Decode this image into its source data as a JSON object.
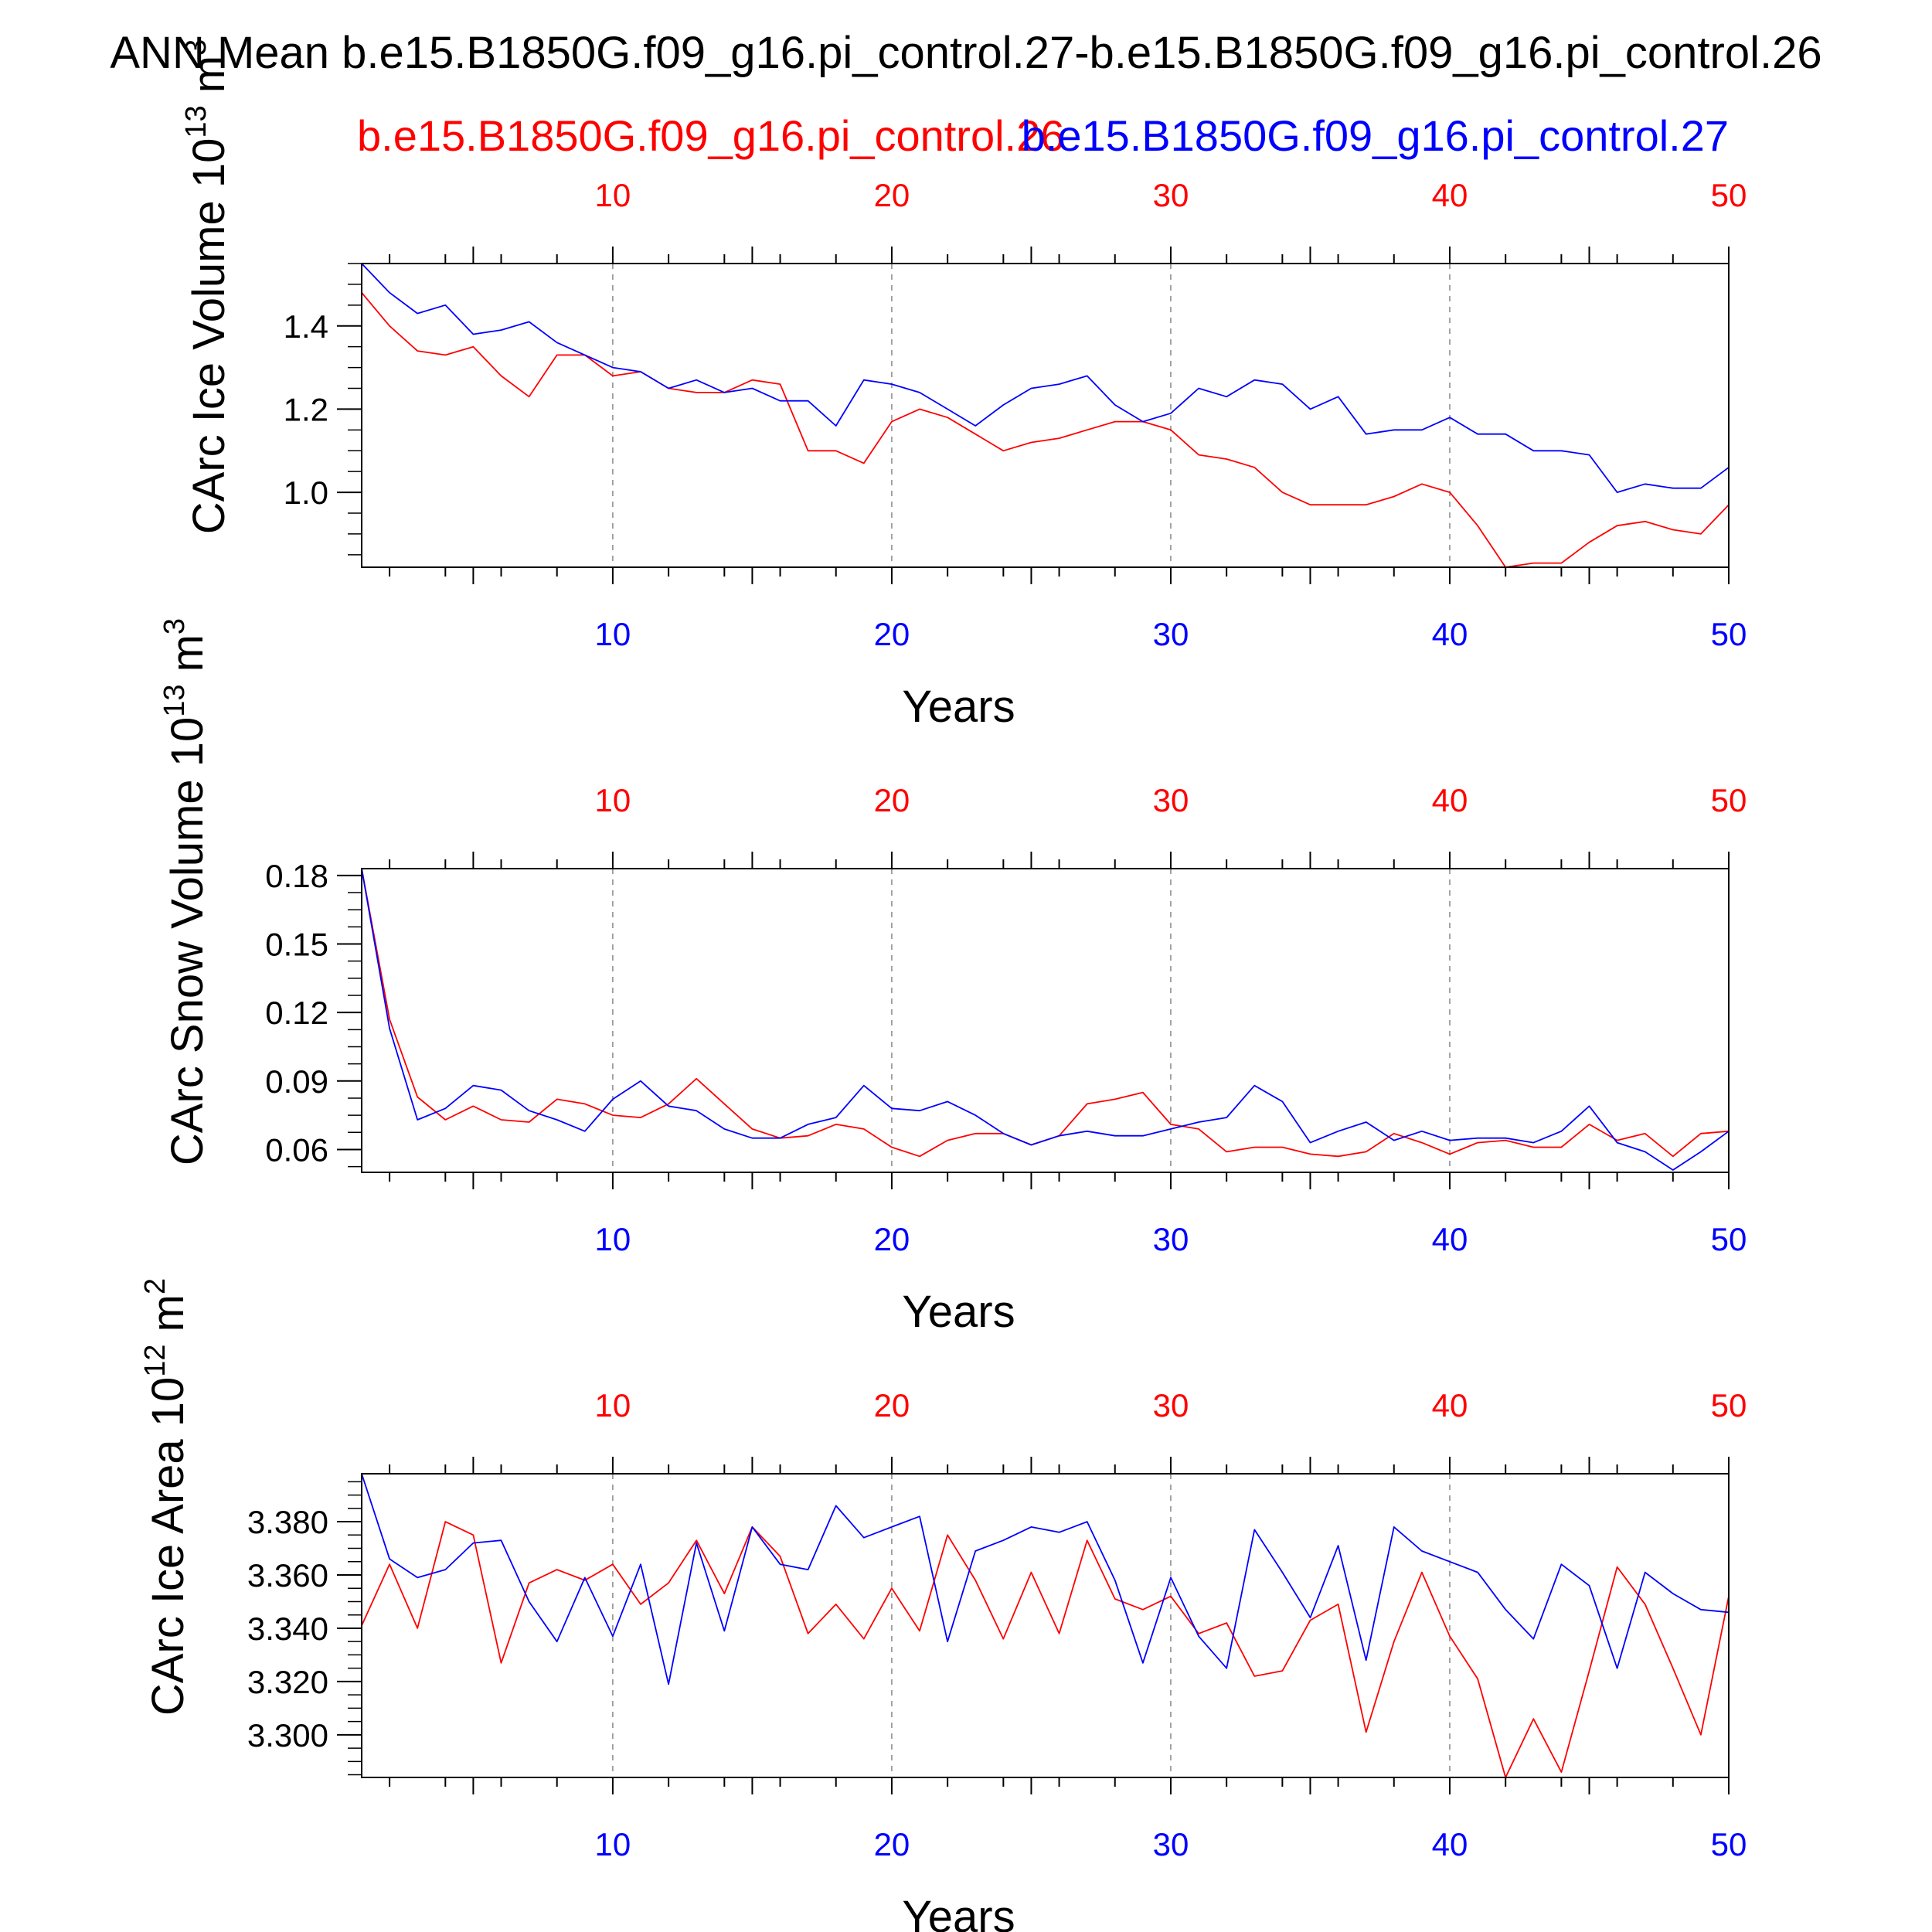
{
  "page": {
    "title": "ANN Mean b.e15.B1850G.f09_g16.pi_control.27-b.e15.B1850G.f09_g16.pi_control.26",
    "legend_red": "b.e15.B1850G.f09_g16.pi_control.26",
    "legend_blue": "b.e15.B1850G.f09_g16.pi_control.27",
    "colors": {
      "case_26": "#ff0000",
      "case_27": "#0000ff",
      "frame": "#000000",
      "grid": "#888888"
    }
  },
  "chart_data": [
    {
      "type": "line",
      "title": "",
      "xlabel": "Years",
      "ylabel": "CArc Ice Volume 10",
      "ylabel_exp": "13",
      "ylabel_unit": " m",
      "ylabel_unit_exp": "3",
      "xlim": [
        1,
        50
      ],
      "ylim": [
        0.82,
        1.55
      ],
      "yticks": [
        1.0,
        1.2,
        1.4
      ],
      "ytick_labels": [
        "1.0",
        "1.2",
        "1.4"
      ],
      "xticks": [
        10,
        20,
        30,
        40,
        50
      ],
      "xtick_labels": [
        "10",
        "20",
        "30",
        "40",
        "50"
      ],
      "top_xtick_labels": [
        "10",
        "20",
        "30",
        "40",
        "50"
      ],
      "series": [
        {
          "name": "b.e15.B1850G.f09_g16.pi_control.26",
          "color": "#ff0000",
          "values": [
            1.48,
            1.4,
            1.34,
            1.33,
            1.35,
            1.28,
            1.23,
            1.33,
            1.33,
            1.28,
            1.29,
            1.25,
            1.24,
            1.24,
            1.27,
            1.26,
            1.1,
            1.1,
            1.07,
            1.17,
            1.2,
            1.18,
            1.14,
            1.1,
            1.12,
            1.13,
            1.15,
            1.17,
            1.17,
            1.15,
            1.09,
            1.08,
            1.06,
            1.0,
            0.97,
            0.97,
            0.97,
            0.99,
            1.02,
            1.0,
            0.92,
            0.82,
            0.83,
            0.83,
            0.88,
            0.92,
            0.93,
            0.91,
            0.9,
            0.97
          ]
        },
        {
          "name": "b.e15.B1850G.f09_g16.pi_control.27",
          "color": "#0000ff",
          "values": [
            1.55,
            1.48,
            1.43,
            1.45,
            1.38,
            1.39,
            1.41,
            1.36,
            1.33,
            1.3,
            1.29,
            1.25,
            1.27,
            1.24,
            1.25,
            1.22,
            1.22,
            1.16,
            1.27,
            1.26,
            1.24,
            1.2,
            1.16,
            1.21,
            1.25,
            1.26,
            1.28,
            1.21,
            1.17,
            1.19,
            1.25,
            1.23,
            1.27,
            1.26,
            1.2,
            1.23,
            1.14,
            1.15,
            1.15,
            1.18,
            1.14,
            1.14,
            1.1,
            1.1,
            1.09,
            1.0,
            1.02,
            1.01,
            1.01,
            1.06
          ]
        }
      ]
    },
    {
      "type": "line",
      "title": "",
      "xlabel": "Years",
      "ylabel": "CArc Snow Volume 10",
      "ylabel_exp": "13",
      "ylabel_unit": " m",
      "ylabel_unit_exp": "3",
      "xlim": [
        1,
        50
      ],
      "ylim": [
        0.05,
        0.183
      ],
      "yticks": [
        0.06,
        0.09,
        0.12,
        0.15,
        0.18
      ],
      "ytick_labels": [
        "0.06",
        "0.09",
        "0.12",
        "0.15",
        "0.18"
      ],
      "xticks": [
        10,
        20,
        30,
        40,
        50
      ],
      "xtick_labels": [
        "10",
        "20",
        "30",
        "40",
        "50"
      ],
      "top_xtick_labels": [
        "10",
        "20",
        "30",
        "40",
        "50"
      ],
      "series": [
        {
          "name": "b.e15.B1850G.f09_g16.pi_control.26",
          "color": "#ff0000",
          "values": [
            0.183,
            0.117,
            0.083,
            0.073,
            0.079,
            0.073,
            0.072,
            0.082,
            0.08,
            0.075,
            0.074,
            0.08,
            0.091,
            0.08,
            0.069,
            0.065,
            0.066,
            0.071,
            0.069,
            0.061,
            0.057,
            0.064,
            0.067,
            0.067,
            0.062,
            0.066,
            0.08,
            0.082,
            0.085,
            0.071,
            0.069,
            0.059,
            0.061,
            0.061,
            0.058,
            0.057,
            0.059,
            0.067,
            0.063,
            0.058,
            0.063,
            0.064,
            0.061,
            0.061,
            0.071,
            0.064,
            0.067,
            0.057,
            0.067,
            0.068
          ]
        },
        {
          "name": "b.e15.B1850G.f09_g16.pi_control.27",
          "color": "#0000ff",
          "values": [
            0.183,
            0.113,
            0.073,
            0.078,
            0.088,
            0.086,
            0.077,
            0.073,
            0.068,
            0.082,
            0.09,
            0.079,
            0.077,
            0.069,
            0.065,
            0.065,
            0.071,
            0.074,
            0.088,
            0.078,
            0.077,
            0.081,
            0.075,
            0.067,
            0.062,
            0.066,
            0.068,
            0.066,
            0.066,
            0.069,
            0.072,
            0.074,
            0.088,
            0.081,
            0.063,
            0.068,
            0.072,
            0.064,
            0.068,
            0.064,
            0.065,
            0.065,
            0.063,
            0.068,
            0.079,
            0.063,
            0.059,
            0.051,
            0.059,
            0.068
          ]
        }
      ]
    },
    {
      "type": "line",
      "title": "",
      "xlabel": "Years",
      "ylabel": "CArc Ice Area 10",
      "ylabel_exp": "12",
      "ylabel_unit": " m",
      "ylabel_unit_exp": "2",
      "xlim": [
        1,
        50
      ],
      "ylim": [
        3.284,
        3.398
      ],
      "yticks": [
        3.3,
        3.32,
        3.34,
        3.36,
        3.38
      ],
      "ytick_labels": [
        "3.300",
        "3.320",
        "3.340",
        "3.360",
        "3.380"
      ],
      "xticks": [
        10,
        20,
        30,
        40,
        50
      ],
      "xtick_labels": [
        "10",
        "20",
        "30",
        "40",
        "50"
      ],
      "top_xtick_labels": [
        "10",
        "20",
        "30",
        "40",
        "50"
      ],
      "series": [
        {
          "name": "b.e15.B1850G.f09_g16.pi_control.26",
          "color": "#ff0000",
          "values": [
            3.341,
            3.364,
            3.34,
            3.38,
            3.375,
            3.327,
            3.357,
            3.362,
            3.358,
            3.364,
            3.349,
            3.357,
            3.373,
            3.353,
            3.378,
            3.367,
            3.338,
            3.349,
            3.336,
            3.355,
            3.339,
            3.375,
            3.358,
            3.336,
            3.361,
            3.338,
            3.373,
            3.351,
            3.347,
            3.352,
            3.338,
            3.342,
            3.322,
            3.324,
            3.343,
            3.349,
            3.301,
            3.335,
            3.361,
            3.337,
            3.321,
            3.284,
            3.306,
            3.286,
            3.324,
            3.363,
            3.349,
            3.325,
            3.3,
            3.352
          ]
        },
        {
          "name": "b.e15.B1850G.f09_g16.pi_control.27",
          "color": "#0000ff",
          "values": [
            3.398,
            3.366,
            3.359,
            3.362,
            3.372,
            3.373,
            3.35,
            3.335,
            3.359,
            3.337,
            3.364,
            3.319,
            3.372,
            3.339,
            3.378,
            3.364,
            3.362,
            3.386,
            3.374,
            3.378,
            3.382,
            3.335,
            3.369,
            3.373,
            3.378,
            3.376,
            3.38,
            3.358,
            3.327,
            3.359,
            3.337,
            3.325,
            3.377,
            3.361,
            3.344,
            3.371,
            3.328,
            3.378,
            3.369,
            3.365,
            3.361,
            3.347,
            3.336,
            3.364,
            3.356,
            3.325,
            3.361,
            3.353,
            3.347,
            3.346
          ]
        }
      ]
    }
  ]
}
